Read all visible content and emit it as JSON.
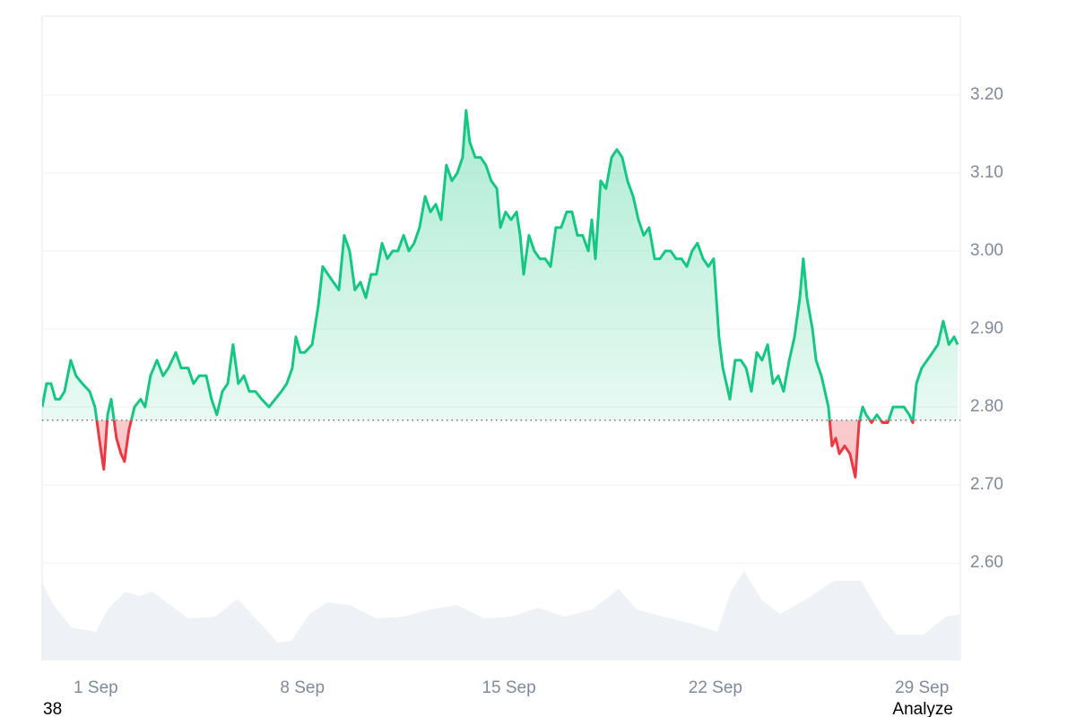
{
  "chart_data": {
    "type": "line",
    "xlim": [
      -0.82,
      30.3
    ],
    "xticks": [
      {
        "value": 1,
        "label": "1 Sep"
      },
      {
        "value": 8,
        "label": "8 Sep"
      },
      {
        "value": 15,
        "label": "15 Sep"
      },
      {
        "value": 22,
        "label": "22 Sep"
      },
      {
        "value": 29,
        "label": "29 Sep"
      }
    ],
    "ylim": [
      2.475,
      3.301
    ],
    "yticks": [
      {
        "value": 3.2,
        "label": "3.20"
      },
      {
        "value": 3.1,
        "label": "3.10"
      },
      {
        "value": 3.0,
        "label": "3.00"
      },
      {
        "value": 2.9,
        "label": "2.90"
      },
      {
        "value": 2.8,
        "label": "2.80"
      },
      {
        "value": 2.7,
        "label": "2.70"
      },
      {
        "value": 2.6,
        "label": "2.60"
      }
    ],
    "y2lim": [
      0,
      720
    ],
    "grid": true,
    "baseline": 2.783,
    "series": [
      {
        "color": "#16c784",
        "below_color": "#ea3943",
        "x": [
          -0.82,
          -0.67,
          -0.52,
          -0.37,
          -0.22,
          -0.06,
          0.15,
          0.33,
          0.54,
          0.79,
          0.97,
          1.15,
          1.27,
          1.4,
          1.52,
          1.7,
          1.85,
          1.97,
          2.12,
          2.31,
          2.52,
          2.67,
          2.85,
          3.07,
          3.28,
          3.46,
          3.71,
          3.89,
          4.13,
          4.31,
          4.5,
          4.74,
          4.92,
          5.1,
          5.29,
          5.47,
          5.65,
          5.83,
          6.02,
          6.2,
          6.41,
          6.62,
          6.87,
          7.08,
          7.29,
          7.47,
          7.66,
          7.78,
          7.93,
          8.08,
          8.33,
          8.54,
          8.69,
          8.87,
          9.05,
          9.24,
          9.42,
          9.6,
          9.78,
          9.97,
          10.15,
          10.33,
          10.51,
          10.7,
          10.88,
          11.06,
          11.24,
          11.43,
          11.61,
          11.79,
          11.97,
          12.16,
          12.34,
          12.52,
          12.7,
          12.88,
          13.07,
          13.25,
          13.43,
          13.55,
          13.67,
          13.86,
          14.04,
          14.22,
          14.4,
          14.59,
          14.71,
          14.89,
          15.07,
          15.26,
          15.38,
          15.5,
          15.68,
          15.86,
          16.05,
          16.23,
          16.41,
          16.59,
          16.77,
          16.96,
          17.14,
          17.32,
          17.5,
          17.69,
          17.81,
          17.93,
          18.11,
          18.29,
          18.48,
          18.66,
          18.84,
          19.02,
          19.21,
          19.39,
          19.57,
          19.75,
          19.94,
          20.12,
          20.3,
          20.48,
          20.67,
          20.85,
          21.03,
          21.21,
          21.39,
          21.58,
          21.76,
          21.94,
          22.12,
          22.25,
          22.37,
          22.49,
          22.67,
          22.86,
          23.04,
          23.22,
          23.4,
          23.58,
          23.77,
          23.95,
          24.13,
          24.31,
          24.5,
          24.68,
          24.86,
          24.98,
          25.1,
          25.29,
          25.41,
          25.59,
          25.71,
          25.83,
          25.95,
          26.08,
          26.2,
          26.38,
          26.56,
          26.74,
          26.87,
          26.99,
          27.11,
          27.29,
          27.47,
          27.66,
          27.84,
          28.02,
          28.2,
          28.39,
          28.57,
          28.69,
          28.81,
          28.99,
          29.18,
          29.36,
          29.54,
          29.72,
          29.91,
          30.09,
          30.21
        ],
        "values": [
          2.8,
          2.83,
          2.83,
          2.81,
          2.81,
          2.82,
          2.86,
          2.84,
          2.83,
          2.82,
          2.8,
          2.75,
          2.72,
          2.79,
          2.81,
          2.76,
          2.74,
          2.73,
          2.77,
          2.8,
          2.81,
          2.8,
          2.84,
          2.86,
          2.84,
          2.85,
          2.87,
          2.85,
          2.85,
          2.83,
          2.84,
          2.84,
          2.81,
          2.79,
          2.82,
          2.83,
          2.88,
          2.83,
          2.84,
          2.82,
          2.82,
          2.81,
          2.8,
          2.81,
          2.82,
          2.83,
          2.85,
          2.89,
          2.87,
          2.87,
          2.88,
          2.93,
          2.98,
          2.97,
          2.96,
          2.95,
          3.02,
          3.0,
          2.95,
          2.96,
          2.94,
          2.97,
          2.97,
          3.01,
          2.99,
          3.0,
          3.0,
          3.02,
          3.0,
          3.01,
          3.03,
          3.07,
          3.05,
          3.06,
          3.04,
          3.11,
          3.09,
          3.1,
          3.12,
          3.18,
          3.14,
          3.12,
          3.12,
          3.11,
          3.09,
          3.08,
          3.03,
          3.05,
          3.04,
          3.05,
          3.02,
          2.97,
          3.02,
          3.0,
          2.99,
          2.99,
          2.98,
          3.03,
          3.03,
          3.05,
          3.05,
          3.02,
          3.02,
          3.0,
          3.04,
          2.99,
          3.09,
          3.08,
          3.12,
          3.13,
          3.12,
          3.09,
          3.07,
          3.04,
          3.02,
          3.03,
          2.99,
          2.99,
          3.0,
          3.0,
          2.99,
          2.99,
          2.98,
          3.0,
          3.01,
          2.99,
          2.98,
          2.99,
          2.89,
          2.85,
          2.83,
          2.81,
          2.86,
          2.86,
          2.85,
          2.82,
          2.87,
          2.86,
          2.88,
          2.83,
          2.84,
          2.82,
          2.86,
          2.89,
          2.94,
          2.99,
          2.94,
          2.9,
          2.86,
          2.84,
          2.82,
          2.8,
          2.75,
          2.76,
          2.74,
          2.75,
          2.74,
          2.71,
          2.78,
          2.8,
          2.79,
          2.78,
          2.79,
          2.78,
          2.78,
          2.8,
          2.8,
          2.8,
          2.79,
          2.78,
          2.83,
          2.85,
          2.86,
          2.87,
          2.88,
          2.91,
          2.88,
          2.89,
          2.88
        ]
      },
      {
        "axis": "y2",
        "color": "#eef1f5",
        "x": [
          -0.82,
          -0.43,
          0.18,
          1.0,
          1.4,
          2.0,
          2.46,
          2.92,
          3.52,
          4.13,
          5.04,
          5.8,
          6.56,
          7.17,
          7.63,
          8.23,
          8.84,
          9.6,
          10.51,
          11.43,
          12.34,
          13.25,
          14.16,
          15.07,
          15.99,
          16.9,
          17.81,
          18.72,
          19.33,
          20.24,
          21.15,
          22.06,
          22.52,
          22.97,
          23.58,
          24.19,
          25.1,
          26.01,
          26.93,
          27.69,
          28.14,
          29.05,
          29.81,
          30.27
        ],
        "values": [
          87,
          62,
          37,
          32,
          57,
          77,
          72,
          77,
          62,
          47,
          49,
          69,
          42,
          20,
          22,
          52,
          65,
          62,
          47,
          49,
          57,
          62,
          47,
          49,
          59,
          49,
          57,
          80,
          57,
          49,
          42,
          32,
          77,
          100,
          67,
          52,
          69,
          89,
          89,
          47,
          29,
          29,
          49,
          52
        ]
      }
    ],
    "footer_left": "38",
    "footer_right": "Analyze"
  }
}
